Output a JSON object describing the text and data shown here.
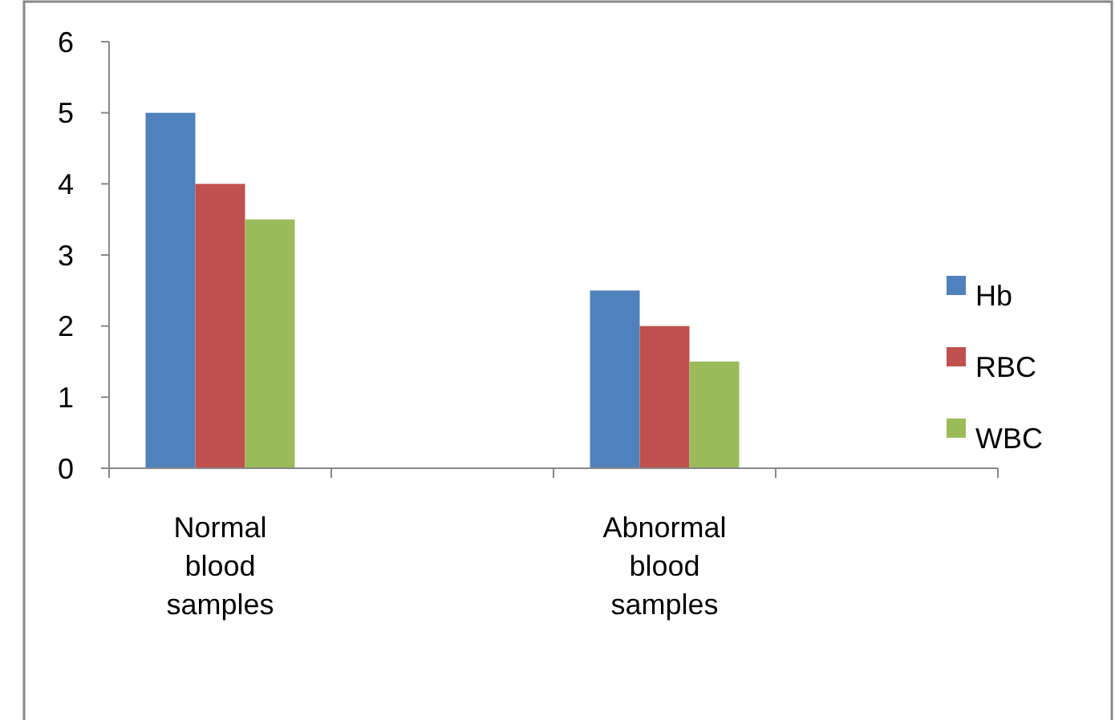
{
  "chart_data": {
    "type": "bar",
    "categories": [
      "Normal blood samples",
      null,
      "Abnormal blood samples",
      null
    ],
    "series": [
      {
        "name": "Hb",
        "color": "#4f81bd",
        "values": [
          5,
          null,
          2.5,
          null
        ]
      },
      {
        "name": "RBC",
        "color": "#c0504d",
        "values": [
          4,
          null,
          2,
          null
        ]
      },
      {
        "name": "WBC",
        "color": "#9bbb59",
        "values": [
          3.5,
          null,
          1.5,
          null
        ]
      }
    ],
    "ylim": [
      0,
      6
    ],
    "yticks": [
      0,
      1,
      2,
      3,
      4,
      5,
      6
    ],
    "grid": false,
    "legend": "right"
  }
}
